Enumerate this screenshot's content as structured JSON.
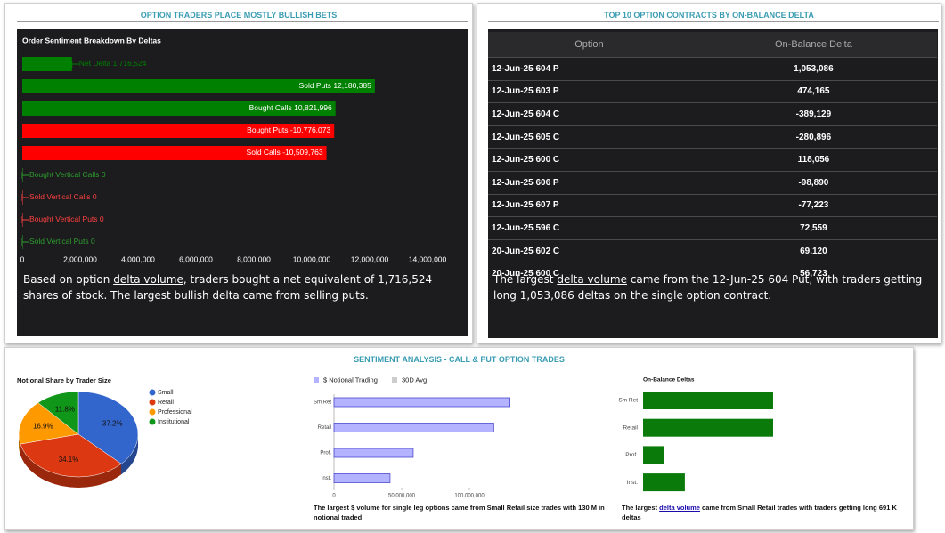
{
  "sentiment_panel": {
    "title": "OPTION TRADERS PLACE MOSTLY BULLISH BETS",
    "text": {
      "before": "Based on option ",
      "link": "delta volume",
      "after": ", traders bought a net equivalent of 1,716,524 shares of stock. The largest bullish delta came from selling puts."
    }
  },
  "contracts_panel": {
    "title": "TOP 10 OPTION CONTRACTS BY ON-BALANCE DELTA",
    "table": {
      "headers": [
        "Option",
        "On-Balance Delta"
      ],
      "rows": [
        [
          "12-Jun-25 604 P",
          "1,053,086"
        ],
        [
          "12-Jun-25 603 P",
          "474,165"
        ],
        [
          "12-Jun-25 604 C",
          "-389,129"
        ],
        [
          "12-Jun-25 605 C",
          "-280,896"
        ],
        [
          "12-Jun-25 600 C",
          "118,056"
        ],
        [
          "12-Jun-25 606 P",
          "-98,890"
        ],
        [
          "12-Jun-25 607 P",
          "-77,223"
        ],
        [
          "12-Jun-25 596 C",
          "72,559"
        ],
        [
          "20-Jun-25 602 C",
          "69,120"
        ],
        [
          "20-Jun-25 600 C",
          "56,723"
        ]
      ]
    },
    "text": {
      "before": "The largest ",
      "link": "delta volume",
      "after": " came from the 12-Jun-25 604 Put, with traders getting long 1,053,086 deltas on the single option contract."
    }
  },
  "analysis_panel": {
    "title": "SENTIMENT ANALYSIS - CALL & PUT OPTION TRADES"
  },
  "chart_data": [
    {
      "type": "bar",
      "orientation": "horizontal",
      "title": "Order Sentiment Breakdown By Deltas",
      "categories": [
        "Net Delta",
        "Sold Puts",
        "Bought Calls",
        "Bought Puts",
        "Sold Calls",
        "Bought Vertical Calls",
        "Sold Vertical Calls",
        "Bought Vertical Puts",
        "Sold Vertical Puts"
      ],
      "values": [
        1716524,
        12180385,
        10821996,
        -10776073,
        -10509763,
        0,
        0,
        0,
        0
      ],
      "value_labels": [
        "1,716,524",
        "12,180,385",
        "10,821,996",
        "-10,776,073",
        "-10,509,763",
        "0",
        "0",
        "0",
        "0"
      ],
      "colors": [
        "#008000",
        "#008000",
        "#008000",
        "#ff0000",
        "#ff0000",
        "#2e9e2e",
        "#ff4040",
        "#ff4040",
        "#2e9e2e"
      ],
      "xlim": [
        0,
        14000000
      ],
      "xticks": [
        0,
        {
          "value": 2000000,
          "label": "2,000,000"
        },
        {
          "value": 4000000,
          "label": "4,000,000"
        },
        {
          "value": 6000000,
          "label": "6,000,000"
        },
        {
          "value": 8000000,
          "label": "8,000,000"
        },
        {
          "value": 10000000,
          "label": "10,000,000"
        },
        {
          "value": 12000000,
          "label": "12,000,000"
        },
        {
          "value": 14000000,
          "label": "14,000,000"
        }
      ]
    },
    {
      "type": "pie",
      "title": "Notional Share by Trader Size",
      "categories": [
        "Small",
        "Retail",
        "Professional",
        "Institutional"
      ],
      "values": [
        37.2,
        34.1,
        16.9,
        11.8
      ],
      "value_labels": [
        "37.2%",
        "34.1%",
        "16.9%",
        "11.8%"
      ],
      "colors": [
        "#3366cc",
        "#dc3912",
        "#ff9900",
        "#109618"
      ]
    },
    {
      "type": "bar",
      "orientation": "horizontal",
      "categories": [
        "Sm Ret",
        "Retail",
        "Prof.",
        "Inst."
      ],
      "series": [
        {
          "name": "$ Notional Trading",
          "color": "#b3b3ff",
          "values": [
            130000000,
            118000000,
            58500000,
            41400000
          ]
        },
        {
          "name": "30D Avg",
          "color": "#cccccc",
          "values": [
            null,
            null,
            null,
            null
          ]
        }
      ],
      "xlim": [
        0,
        150000000
      ],
      "xticks": [
        0,
        {
          "value": 50000000,
          "label": "50,000,000"
        },
        {
          "value": 100000000,
          "label": "100,000,000"
        }
      ],
      "caption": {
        "before": "The largest $ volume for single leg options came from Small Retail size trades with 130 M in notional traded"
      }
    },
    {
      "type": "bar",
      "orientation": "horizontal",
      "title": "On-Balance Deltas",
      "categories": [
        "Sm Ret",
        "Retail",
        "Prof.",
        "Inst."
      ],
      "values": [
        691000,
        691000,
        109000,
        222000
      ],
      "color": "#0a7a0a",
      "caption": {
        "before": "The largest ",
        "link": "delta volume",
        "after": " came from Small Retail trades with traders getting long 691 K deltas"
      }
    }
  ]
}
